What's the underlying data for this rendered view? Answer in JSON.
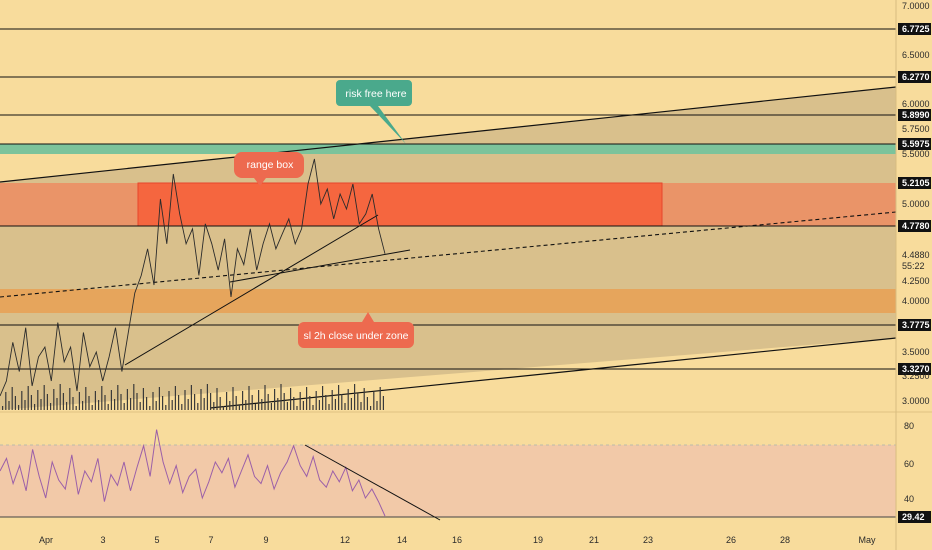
{
  "colors": {
    "background": "#f8dc9c",
    "channel_fill": "#d9c08c",
    "red_zone": "#f5663f",
    "red_zone_light": "#ea9468",
    "orange_zone": "#e6a55c",
    "green_zone": "#7cc39b",
    "callout_green": "#4aa98c",
    "callout_red": "#ed6a4f",
    "rsi_band": "#f2c9a8",
    "rsi_line": "#9b5fa8",
    "price_line": "#2b2b2b",
    "label_box": "#111111"
  },
  "chart_data": [
    {
      "type": "line",
      "panel": "price",
      "y_ticks": [
        "7.0000",
        "6.7725",
        "6.5000",
        "6.2770",
        "6.0000",
        "5.8990",
        "5.7500",
        "5.5975",
        "5.5000",
        "5.2105",
        "5.0000",
        "4.7780",
        "4.4880",
        "55:22",
        "4.2500",
        "4.0000",
        "3.7775",
        "3.5000",
        "3.3270",
        "3.2500",
        "3.0000"
      ],
      "highlighted_levels": [
        "6.7725",
        "6.2770",
        "5.8990",
        "5.5975",
        "5.2105",
        "4.7780",
        "3.7775",
        "3.3270"
      ],
      "last_price": "4.4880",
      "countdown": "55:22",
      "horizontal_levels": [
        6.7725,
        6.277,
        5.899,
        5.5975,
        4.778,
        3.7775,
        3.327
      ],
      "zones": [
        {
          "name": "range box",
          "low": 4.778,
          "high": 5.2105
        },
        {
          "name": "green zone",
          "low": 5.555,
          "high": 5.5975
        },
        {
          "name": "orange zone",
          "low": 3.92,
          "high": 4.14
        }
      ],
      "ylim": [
        2.9,
        7.0
      ],
      "x_ticks": [
        "Apr",
        "3",
        "5",
        "7",
        "9",
        "12",
        "14",
        "16",
        "19",
        "21",
        "23",
        "26",
        "28",
        "May"
      ],
      "price_points": [
        3.05,
        3.2,
        3.6,
        3.3,
        3.75,
        3.15,
        3.45,
        3.55,
        3.2,
        3.8,
        3.4,
        3.55,
        3.1,
        3.7,
        3.35,
        3.5,
        3.2,
        3.45,
        3.75,
        3.3,
        3.7,
        4.1,
        4.3,
        4.55,
        4.2,
        5.05,
        4.6,
        5.3,
        4.9,
        4.6,
        4.75,
        4.3,
        4.8,
        4.6,
        4.35,
        4.65,
        4.05,
        4.55,
        4.4,
        4.75,
        4.35,
        4.6,
        4.8,
        4.55,
        4.7,
        4.85,
        4.6,
        4.75,
        5.2,
        5.45,
        5.0,
        5.15,
        4.85,
        5.1,
        4.95,
        5.2,
        4.8,
        4.9,
        5.1,
        4.75,
        4.5
      ]
    },
    {
      "type": "line",
      "panel": "rsi",
      "y_ticks": [
        "80",
        "60",
        "40",
        "29.42"
      ],
      "ylim": [
        25,
        85
      ],
      "last_value": "29.42",
      "rsi_points": [
        55,
        62,
        48,
        58,
        44,
        67,
        52,
        40,
        60,
        50,
        45,
        64,
        42,
        55,
        49,
        62,
        38,
        53,
        47,
        60,
        44,
        57,
        69,
        52,
        78,
        60,
        48,
        58,
        43,
        52,
        56,
        40,
        49,
        60,
        54,
        62,
        46,
        55,
        64,
        52,
        48,
        58,
        45,
        54,
        60,
        69,
        58,
        52,
        63,
        50,
        46,
        55,
        49,
        57,
        44,
        50,
        40,
        45,
        38,
        30
      ]
    }
  ],
  "callouts": {
    "risk_free": "risk free here",
    "range_box": "range box",
    "stop_loss": "sl 2h close under zone"
  }
}
